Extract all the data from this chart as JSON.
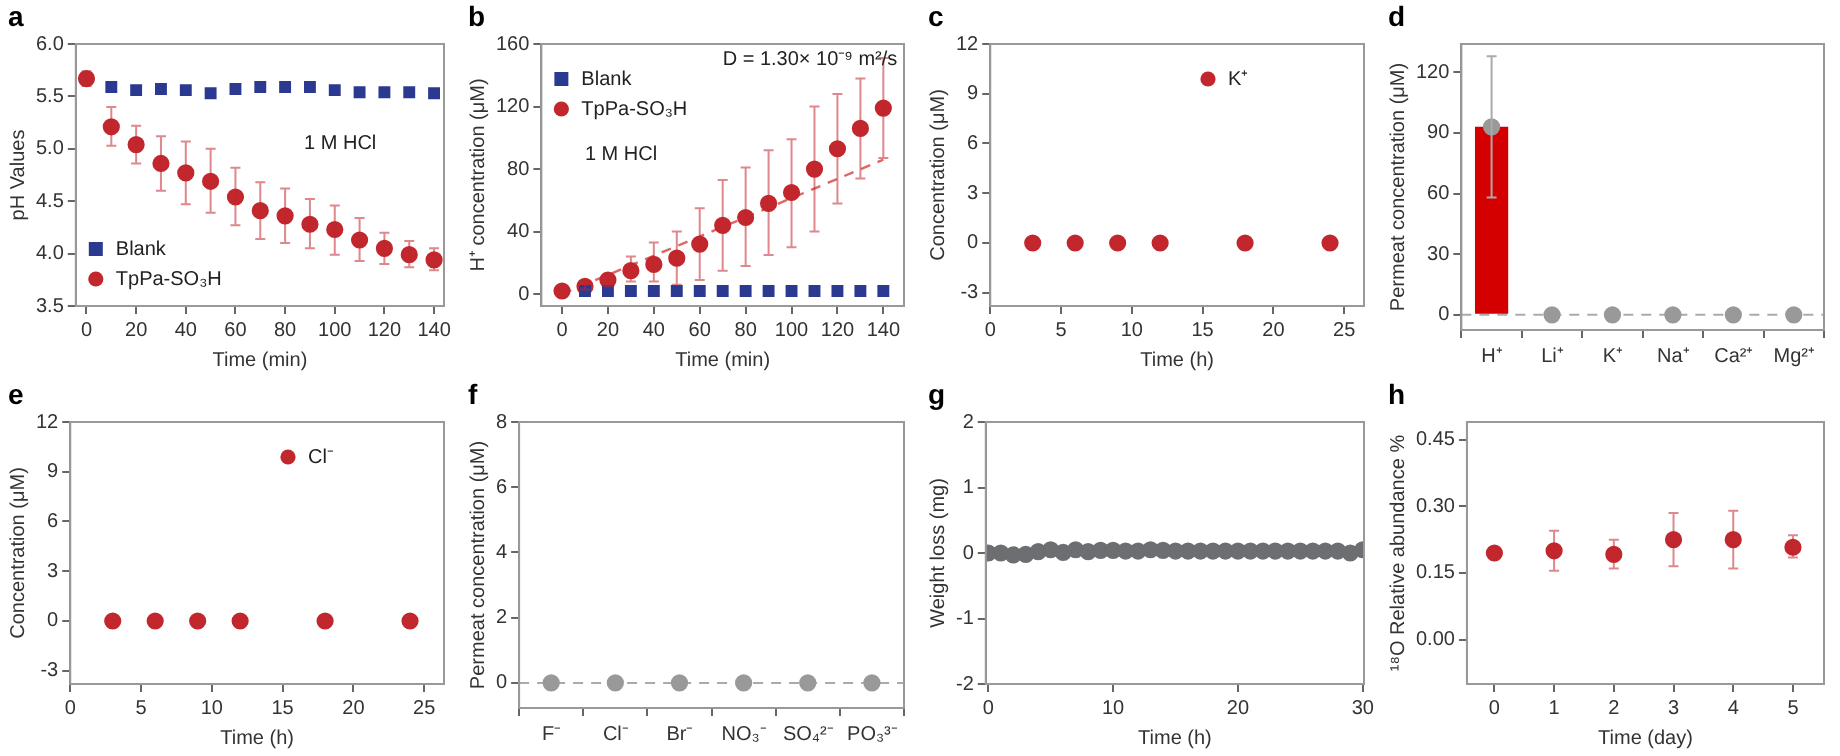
{
  "chart_data": [
    {
      "title": "a",
      "type": "scatter",
      "xlabel": "Time (min)",
      "ylabel": "pH Values",
      "xlim": [
        -4.3,
        144
      ],
      "xticks": [
        0,
        20,
        40,
        60,
        80,
        100,
        120,
        140
      ],
      "ylim": [
        3.5,
        6.0
      ],
      "yticks": [
        3.5,
        {
          "value": 4,
          "label": "4.0"
        },
        4.5,
        {
          "value": 5,
          "label": "5.0"
        },
        5.5,
        {
          "value": 6,
          "label": "6.0"
        }
      ],
      "legend": "bottom left",
      "annotations": [
        "1 M HCl"
      ],
      "series": [
        {
          "name": "Blank",
          "color": "#2b3990",
          "marker": "square",
          "x": [
            10,
            20,
            30,
            40,
            50,
            60,
            70,
            80,
            90,
            100,
            110,
            120,
            130,
            140
          ],
          "values": [
            5.59,
            5.56,
            5.57,
            5.56,
            5.53,
            5.57,
            5.59,
            5.59,
            5.59,
            5.56,
            5.54,
            5.54,
            5.54,
            5.53
          ]
        },
        {
          "name": "TpPa-SO₃H",
          "color": "#c1272d",
          "marker": "circle",
          "x": [
            0,
            10,
            20,
            30,
            40,
            50,
            60,
            70,
            80,
            90,
            100,
            110,
            120,
            130,
            140
          ],
          "values": [
            5.67,
            5.21,
            5.04,
            4.86,
            4.77,
            4.69,
            4.54,
            4.41,
            4.36,
            4.28,
            4.23,
            4.13,
            4.05,
            3.99,
            3.94
          ],
          "errors": [
            0.07,
            [
              5.03,
              5.4
            ],
            [
              4.86,
              5.22
            ],
            [
              4.6,
              5.12
            ],
            [
              4.47,
              5.07
            ],
            [
              4.39,
              5.0
            ],
            [
              4.27,
              4.82
            ],
            [
              4.14,
              4.68
            ],
            [
              4.1,
              4.62
            ],
            [
              4.05,
              4.52
            ],
            [
              3.99,
              4.46
            ],
            [
              3.93,
              4.34
            ],
            [
              3.9,
              4.2
            ],
            [
              3.87,
              4.12
            ],
            [
              3.84,
              4.05
            ]
          ]
        }
      ]
    },
    {
      "title": "b",
      "type": "scatter",
      "xlabel": "Time (min)",
      "ylabel": "H⁺ concentration (μM)",
      "xlim": [
        -9,
        149
      ],
      "xticks": [
        0,
        20,
        40,
        60,
        80,
        100,
        120,
        140
      ],
      "ylim": [
        -7.6,
        160
      ],
      "yticks": [
        0,
        40,
        80,
        120,
        160
      ],
      "legend": "top left",
      "annotations": [
        "D = 1.30× 10⁻⁹ m²/s",
        "1 M HCl"
      ],
      "series": [
        {
          "name": "Blank",
          "color": "#2b3990",
          "marker": "square",
          "x": [
            10,
            20,
            30,
            40,
            50,
            60,
            70,
            80,
            90,
            100,
            110,
            120,
            130,
            140
          ],
          "values": [
            2,
            2,
            2,
            2,
            2,
            2,
            2,
            2,
            2,
            2,
            2,
            2,
            2,
            2
          ]
        },
        {
          "name": "TpPa-SO₃H",
          "color": "#c1272d",
          "marker": "circle",
          "x": [
            0,
            10,
            20,
            30,
            40,
            50,
            60,
            70,
            80,
            90,
            100,
            110,
            120,
            130,
            140
          ],
          "values": [
            2,
            5,
            9,
            15,
            19,
            23,
            32,
            44,
            49,
            58,
            65,
            80,
            93,
            106,
            119
          ],
          "errors": [
            null,
            [
              3,
              8
            ],
            [
              5,
              13
            ],
            [
              8,
              24
            ],
            [
              8,
              33
            ],
            [
              6,
              40
            ],
            [
              9,
              55
            ],
            [
              15,
              73
            ],
            [
              18,
              81
            ],
            [
              25,
              92
            ],
            [
              30,
              99
            ],
            [
              40,
              120
            ],
            [
              58,
              128
            ],
            [
              74,
              138
            ],
            [
              87,
              151
            ]
          ]
        },
        {
          "type": "line",
          "color": "#e06666",
          "marker": "none",
          "line_style": "dashed",
          "x": [
            0,
            140
          ],
          "values": [
            0,
            86
          ]
        }
      ]
    },
    {
      "title": "c",
      "type": "scatter",
      "xlabel": "Time (h)",
      "ylabel": "Concentration (μM)",
      "xlim": [
        0,
        26.4
      ],
      "xticks": [
        0,
        5,
        10,
        15,
        20,
        25
      ],
      "ylim": [
        -3.8,
        12
      ],
      "yticks": [
        -3,
        0,
        3,
        6,
        9,
        12
      ],
      "legend": "top right",
      "series": [
        {
          "name": "K⁺",
          "color": "#c1272d",
          "marker": "circle",
          "x": [
            3,
            6,
            9,
            12,
            18,
            24
          ],
          "values": [
            0,
            0,
            0,
            0,
            0,
            0
          ]
        }
      ]
    },
    {
      "title": "d",
      "type": "bar",
      "ylabel": "Permeat concentration (μM)",
      "categories": [
        "H⁺",
        "Li⁺",
        "K⁺",
        "Na⁺",
        "Ca²⁺",
        "Mg²⁺"
      ],
      "ylim": [
        -7.5,
        134
      ],
      "yticks": [
        0,
        30,
        60,
        90,
        120
      ],
      "ref_lines": [
        {
          "axis": "y",
          "value": 0,
          "color": "#aaaaaa",
          "line_style": "dashed"
        }
      ],
      "series": [
        {
          "color": "#d40000",
          "values": [
            93,
            null,
            null,
            null,
            null,
            null
          ],
          "errors": [
            35,
            null,
            null,
            null,
            null,
            null
          ]
        },
        {
          "type": "scatter",
          "color": "#999999",
          "marker": "circle",
          "x": [
            "H⁺",
            "Li⁺",
            "K⁺",
            "Na⁺",
            "Ca²⁺",
            "Mg²⁺"
          ],
          "values": [
            93,
            0,
            0,
            0,
            0,
            0
          ]
        }
      ]
    },
    {
      "title": "e",
      "type": "scatter",
      "xlabel": "Time (h)",
      "ylabel": "Concentration (μM)",
      "xlim": [
        0,
        26.4
      ],
      "xticks": [
        0,
        5,
        10,
        15,
        20,
        25
      ],
      "ylim": [
        -3.8,
        12
      ],
      "yticks": [
        -3,
        0,
        3,
        6,
        9,
        12
      ],
      "legend": "top right",
      "series": [
        {
          "name": "Cl⁻",
          "color": "#c1272d",
          "marker": "circle",
          "x": [
            3,
            6,
            9,
            12,
            18,
            24
          ],
          "values": [
            0,
            0,
            0,
            0,
            0,
            0
          ]
        }
      ]
    },
    {
      "title": "f",
      "type": "scatter",
      "ylabel": "Permeat concentration (μM)",
      "categories": [
        "F⁻",
        "Cl⁻",
        "Br⁻",
        "NO₃⁻",
        "SO₄²⁻",
        "PO₃³⁻"
      ],
      "ylim": [
        -0.77,
        8
      ],
      "yticks": [
        0,
        2,
        4,
        6,
        8
      ],
      "ref_lines": [
        {
          "axis": "y",
          "value": 0,
          "color": "#aaaaaa",
          "line_style": "dashed"
        }
      ],
      "series": [
        {
          "color": "#999999",
          "marker": "circle",
          "values": [
            0,
            0,
            0,
            0,
            0,
            0
          ]
        }
      ]
    },
    {
      "title": "g",
      "type": "scatter",
      "xlabel": "Time (h)",
      "ylabel": "Weight loss (mg)",
      "xlim": [
        -0.2,
        30.1
      ],
      "xticks": [
        0,
        10,
        20,
        30
      ],
      "ylim": [
        -2,
        2
      ],
      "yticks": [
        -2,
        -1,
        0,
        1,
        2
      ],
      "series": [
        {
          "color": "#6d6e71",
          "marker": "circle",
          "x": [
            0,
            1,
            2,
            3,
            4,
            5,
            6,
            7,
            8,
            9,
            10,
            11,
            12,
            13,
            14,
            15,
            16,
            17,
            18,
            19,
            20,
            21,
            22,
            23,
            24,
            25,
            26,
            27,
            28,
            29,
            30
          ],
          "values": [
            0,
            0,
            -0.03,
            -0.02,
            0.02,
            0.05,
            0.01,
            0.05,
            0.02,
            0.04,
            0.04,
            0.03,
            0.03,
            0.05,
            0.04,
            0.03,
            0.03,
            0.03,
            0.03,
            0.03,
            0.03,
            0.03,
            0.03,
            0.03,
            0.03,
            0.03,
            0.03,
            0.03,
            0.03,
            0,
            0.05
          ]
        }
      ]
    },
    {
      "title": "h",
      "type": "scatter",
      "xlabel": "Time (day)",
      "ylabel": "¹⁸O Relative abundance %",
      "xlim": [
        -0.46,
        5.52
      ],
      "xticks": [
        0,
        1,
        2,
        3,
        4,
        5
      ],
      "ylim": [
        -0.1,
        0.49
      ],
      "yticks": [
        {
          "value": 0,
          "label": "0.00"
        },
        0.15,
        {
          "value": 0.3,
          "label": "0.30"
        },
        0.45
      ],
      "series": [
        {
          "color": "#c1272d",
          "marker": "circle",
          "x": [
            0,
            1,
            2,
            3,
            4,
            5
          ],
          "values": [
            0.195,
            0.2,
            0.192,
            0.225,
            0.225,
            0.208
          ],
          "errors": [
            null,
            [
              0.155,
              0.245
            ],
            [
              0.16,
              0.225
            ],
            [
              0.165,
              0.285
            ],
            [
              0.16,
              0.29
            ],
            [
              0.185,
              0.235
            ]
          ]
        }
      ]
    }
  ]
}
